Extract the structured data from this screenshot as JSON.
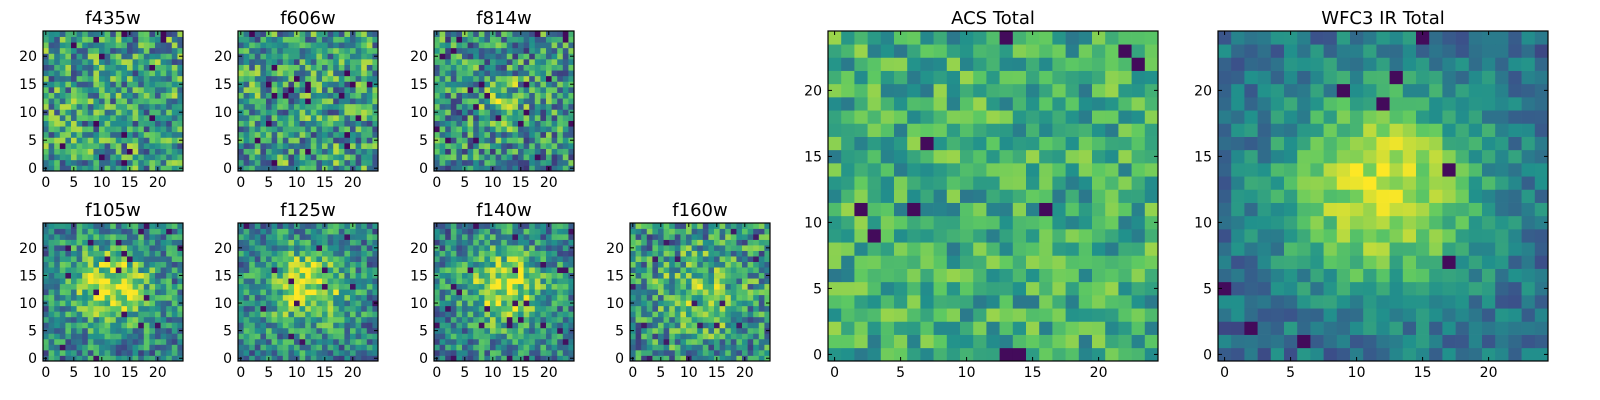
{
  "figure": {
    "colormap": "viridis",
    "colormap_stops": [
      "#440154",
      "#3b528b",
      "#21918c",
      "#5ec962",
      "#fde725"
    ],
    "frame_color": "#000000",
    "background": "#ffffff"
  },
  "chart_data": [
    {
      "type": "heatmap",
      "title": "f435w",
      "grid_size": 25,
      "xlim": [
        0,
        24
      ],
      "ylim": [
        0,
        24
      ],
      "x_ticks": [
        0,
        5,
        10,
        15,
        20
      ],
      "y_ticks": [
        0,
        5,
        10,
        15,
        20
      ],
      "profile": "noise_acs",
      "seed": 11
    },
    {
      "type": "heatmap",
      "title": "f606w",
      "grid_size": 25,
      "xlim": [
        0,
        24
      ],
      "ylim": [
        0,
        24
      ],
      "x_ticks": [
        0,
        5,
        10,
        15,
        20
      ],
      "y_ticks": [
        0,
        5,
        10,
        15,
        20
      ],
      "profile": "noise_acs",
      "seed": 23
    },
    {
      "type": "heatmap",
      "title": "f814w",
      "grid_size": 25,
      "xlim": [
        0,
        24
      ],
      "ylim": [
        0,
        24
      ],
      "x_ticks": [
        0,
        5,
        10,
        15,
        20
      ],
      "y_ticks": [
        0,
        5,
        10,
        15,
        20
      ],
      "profile": "noise_acs_faint_center",
      "seed": 37
    },
    {
      "type": "heatmap",
      "title": "f105w",
      "grid_size": 25,
      "xlim": [
        0,
        24
      ],
      "ylim": [
        0,
        24
      ],
      "x_ticks": [
        0,
        5,
        10,
        15,
        20
      ],
      "y_ticks": [
        0,
        5,
        10,
        15,
        20
      ],
      "profile": "source_ir",
      "seed": 41
    },
    {
      "type": "heatmap",
      "title": "f125w",
      "grid_size": 25,
      "xlim": [
        0,
        24
      ],
      "ylim": [
        0,
        24
      ],
      "x_ticks": [
        0,
        5,
        10,
        15,
        20
      ],
      "y_ticks": [
        0,
        5,
        10,
        15,
        20
      ],
      "profile": "source_ir",
      "seed": 53
    },
    {
      "type": "heatmap",
      "title": "f140w",
      "grid_size": 25,
      "xlim": [
        0,
        24
      ],
      "ylim": [
        0,
        24
      ],
      "x_ticks": [
        0,
        5,
        10,
        15,
        20
      ],
      "y_ticks": [
        0,
        5,
        10,
        15,
        20
      ],
      "profile": "source_ir",
      "seed": 67
    },
    {
      "type": "heatmap",
      "title": "f160w",
      "grid_size": 25,
      "xlim": [
        0,
        24
      ],
      "ylim": [
        0,
        24
      ],
      "x_ticks": [
        0,
        5,
        10,
        15,
        20
      ],
      "y_ticks": [
        0,
        5,
        10,
        15,
        20
      ],
      "profile": "source_ir_weak",
      "seed": 79
    },
    {
      "type": "heatmap",
      "title": "ACS Total",
      "grid_size": 25,
      "xlim": [
        0,
        24
      ],
      "ylim": [
        0,
        24
      ],
      "x_ticks": [
        0,
        5,
        10,
        15,
        20
      ],
      "y_ticks": [
        0,
        5,
        10,
        15,
        20
      ],
      "profile": "acs_total",
      "seed": 97
    },
    {
      "type": "heatmap",
      "title": "WFC3 IR Total",
      "grid_size": 25,
      "xlim": [
        0,
        24
      ],
      "ylim": [
        0,
        24
      ],
      "x_ticks": [
        0,
        5,
        10,
        15,
        20
      ],
      "y_ticks": [
        0,
        5,
        10,
        15,
        20
      ],
      "profile": "ir_total",
      "seed": 113
    }
  ]
}
